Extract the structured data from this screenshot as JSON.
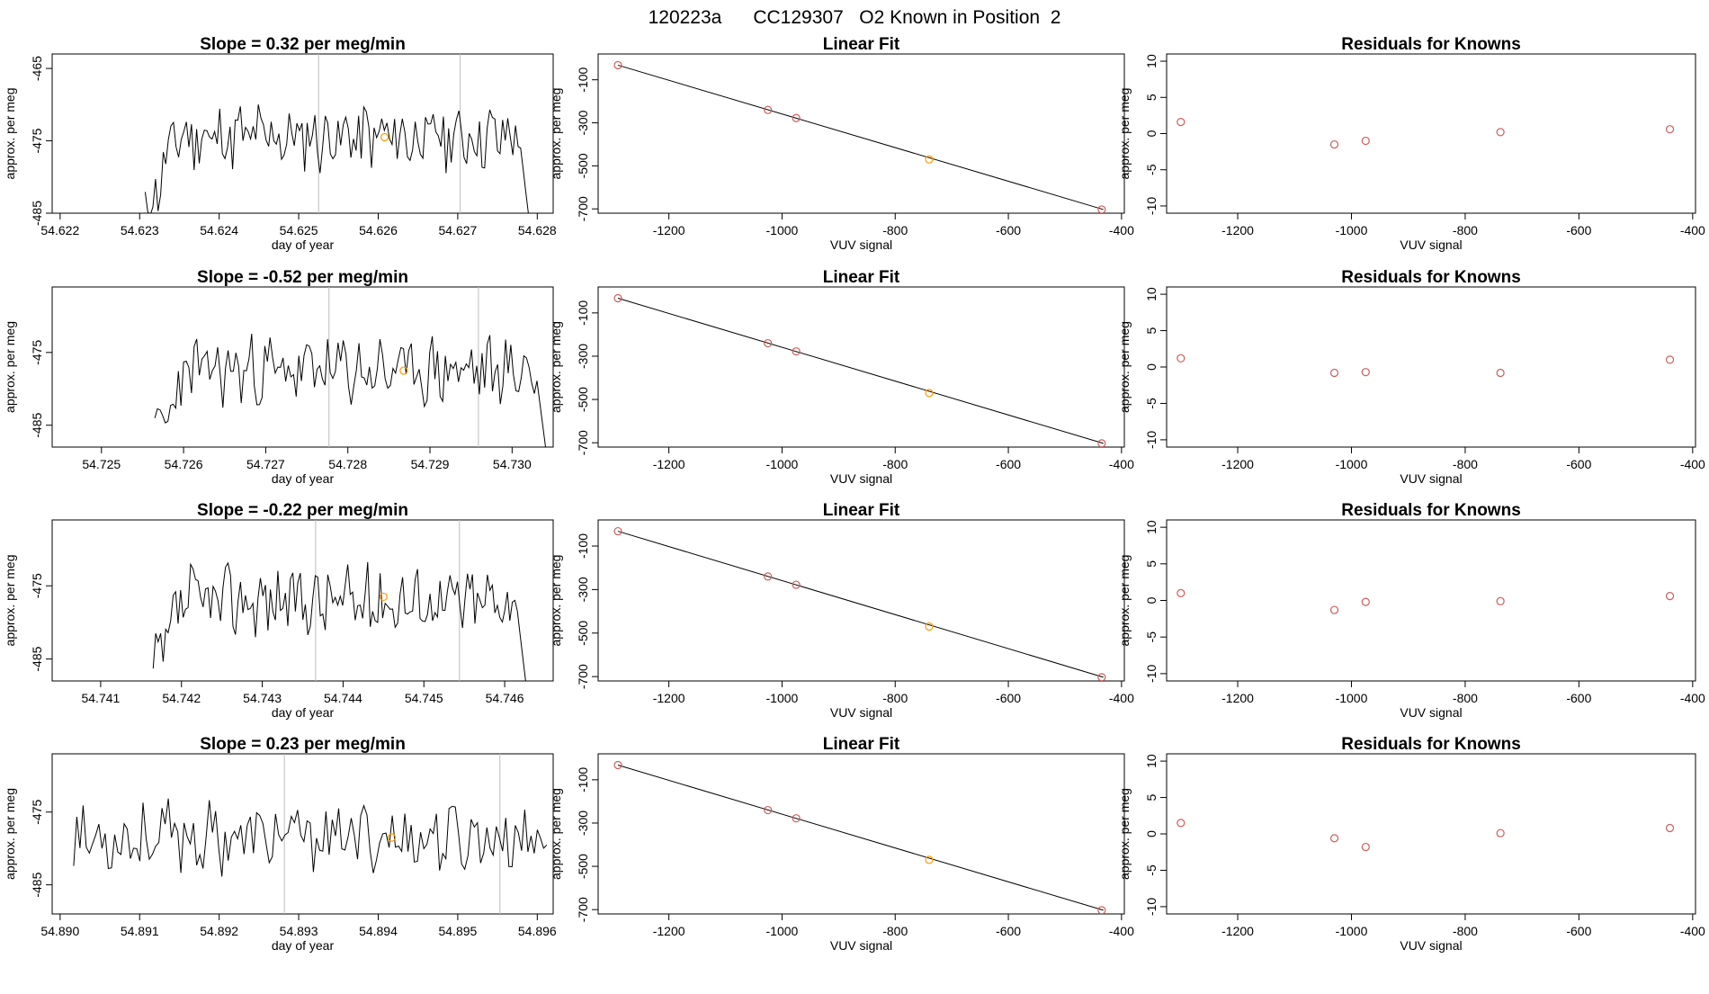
{
  "page_title": "120223a      CC129307   O2 Known in Position  2",
  "colors": {
    "line": "#000000",
    "known_point": "#cd5c5c",
    "unknown_point": "#ff9900",
    "vline": "#bebebe"
  },
  "chart_data": [
    {
      "type": "line",
      "title": "Slope =  0.32  per meg/min",
      "xlabel": "day of year",
      "ylabel": "approx. per meg",
      "xlim": [
        54.6219,
        54.6282
      ],
      "ylim": [
        -485,
        -463
      ],
      "xticks": [
        "54.622",
        "54.623",
        "54.624",
        "54.625",
        "54.626",
        "54.627",
        "54.628"
      ],
      "yticks": [
        "-465",
        "-475",
        "-485"
      ],
      "vlines": [
        54.62525,
        54.62703
      ],
      "marker": {
        "x": 54.62608,
        "y": -474.5
      },
      "trace": {
        "x0": 54.62307,
        "x1": 54.62792,
        "y_base": -474.5,
        "y_end": -488,
        "seed": 11
      }
    },
    {
      "type": "line",
      "title": "Linear Fit",
      "xlabel": "VUV signal",
      "ylabel": "approx. per meg",
      "xlim": [
        -1325,
        -395
      ],
      "ylim": [
        -720,
        20
      ],
      "xticks": [
        "-1200",
        "-1000",
        "-800",
        "-600",
        "-400"
      ],
      "yticks": [
        "-100",
        "-300",
        "-500",
        "-700"
      ],
      "fit": {
        "x": [
          -1290,
          -432
        ],
        "y": [
          -32,
          -703
        ]
      },
      "points": [
        {
          "x": -1290,
          "y": -32,
          "kind": "known"
        },
        {
          "x": -1025,
          "y": -240,
          "kind": "known"
        },
        {
          "x": -975,
          "y": -278,
          "kind": "known"
        },
        {
          "x": -740,
          "y": -470,
          "kind": "unknown"
        },
        {
          "x": -435,
          "y": -703,
          "kind": "known"
        }
      ]
    },
    {
      "type": "scatter",
      "title": "Residuals for Knowns",
      "xlabel": "VUV signal",
      "ylabel": "approx. per meg",
      "xlim": [
        -1325,
        -395
      ],
      "ylim": [
        -11,
        11
      ],
      "xticks": [
        "-1200",
        "-1000",
        "-800",
        "-600",
        "-400"
      ],
      "yticks": [
        "10",
        "5",
        "0",
        "-5",
        "-10"
      ],
      "points": [
        {
          "x": -1300,
          "y": 1.6
        },
        {
          "x": -1030,
          "y": -1.5
        },
        {
          "x": -975,
          "y": -1.0
        },
        {
          "x": -738,
          "y": 0.2
        },
        {
          "x": -440,
          "y": 0.6
        }
      ]
    },
    {
      "type": "line",
      "title": "Slope =  -0.52  per meg/min",
      "xlabel": "day of year",
      "ylabel": "approx. per meg",
      "xlim": [
        54.7244,
        54.7305
      ],
      "ylim": [
        -488,
        -466
      ],
      "xticks": [
        "54.725",
        "54.726",
        "54.727",
        "54.728",
        "54.729",
        "54.730"
      ],
      "yticks": [
        "-475",
        "-485"
      ],
      "vlines": [
        54.72777,
        54.72959
      ],
      "marker": {
        "x": 54.72868,
        "y": -477.5
      },
      "trace": {
        "x0": 54.72565,
        "x1": 54.73043,
        "y_base": -477.5,
        "y_end": -490,
        "seed": 23
      }
    },
    {
      "type": "line",
      "title": "Linear Fit",
      "xlabel": "VUV signal",
      "ylabel": "approx. per meg",
      "xlim": [
        -1325,
        -395
      ],
      "ylim": [
        -720,
        20
      ],
      "xticks": [
        "-1200",
        "-1000",
        "-800",
        "-600",
        "-400"
      ],
      "yticks": [
        "-100",
        "-300",
        "-500",
        "-700"
      ],
      "fit": {
        "x": [
          -1290,
          -432
        ],
        "y": [
          -32,
          -703
        ]
      },
      "points": [
        {
          "x": -1290,
          "y": -32,
          "kind": "known"
        },
        {
          "x": -1025,
          "y": -240,
          "kind": "known"
        },
        {
          "x": -975,
          "y": -278,
          "kind": "known"
        },
        {
          "x": -740,
          "y": -470,
          "kind": "unknown"
        },
        {
          "x": -435,
          "y": -703,
          "kind": "known"
        }
      ]
    },
    {
      "type": "scatter",
      "title": "Residuals for Knowns",
      "xlabel": "VUV signal",
      "ylabel": "approx. per meg",
      "xlim": [
        -1325,
        -395
      ],
      "ylim": [
        -11,
        11
      ],
      "xticks": [
        "-1200",
        "-1000",
        "-800",
        "-600",
        "-400"
      ],
      "yticks": [
        "10",
        "5",
        "0",
        "-5",
        "-10"
      ],
      "points": [
        {
          "x": -1300,
          "y": 1.2
        },
        {
          "x": -1030,
          "y": -0.8
        },
        {
          "x": -975,
          "y": -0.7
        },
        {
          "x": -738,
          "y": -0.8
        },
        {
          "x": -440,
          "y": 1.0
        }
      ]
    },
    {
      "type": "line",
      "title": "Slope =  -0.22  per meg/min",
      "xlabel": "day of year",
      "ylabel": "approx. per meg",
      "xlim": [
        54.7404,
        54.7466
      ],
      "ylim": [
        -488,
        -466
      ],
      "xticks": [
        "54.741",
        "54.742",
        "54.743",
        "54.744",
        "54.745",
        "54.746"
      ],
      "yticks": [
        "-475",
        "-485"
      ],
      "vlines": [
        54.74366,
        54.74544
      ],
      "marker": {
        "x": 54.7445,
        "y": -476.5
      },
      "trace": {
        "x0": 54.74165,
        "x1": 54.74628,
        "y_base": -477.0,
        "y_end": -490,
        "seed": 37
      }
    },
    {
      "type": "line",
      "title": "Linear Fit",
      "xlabel": "VUV signal",
      "ylabel": "approx. per meg",
      "xlim": [
        -1325,
        -395
      ],
      "ylim": [
        -720,
        20
      ],
      "xticks": [
        "-1200",
        "-1000",
        "-800",
        "-600",
        "-400"
      ],
      "yticks": [
        "-100",
        "-300",
        "-500",
        "-700"
      ],
      "fit": {
        "x": [
          -1290,
          -432
        ],
        "y": [
          -32,
          -703
        ]
      },
      "points": [
        {
          "x": -1290,
          "y": -32,
          "kind": "known"
        },
        {
          "x": -1025,
          "y": -240,
          "kind": "known"
        },
        {
          "x": -975,
          "y": -278,
          "kind": "known"
        },
        {
          "x": -740,
          "y": -470,
          "kind": "unknown"
        },
        {
          "x": -435,
          "y": -703,
          "kind": "known"
        }
      ]
    },
    {
      "type": "scatter",
      "title": "Residuals for Knowns",
      "xlabel": "VUV signal",
      "ylabel": "approx. per meg",
      "xlim": [
        -1325,
        -395
      ],
      "ylim": [
        -11,
        11
      ],
      "xticks": [
        "-1200",
        "-1000",
        "-800",
        "-600",
        "-400"
      ],
      "yticks": [
        "10",
        "5",
        "0",
        "-5",
        "-10"
      ],
      "points": [
        {
          "x": -1300,
          "y": 1.0
        },
        {
          "x": -1030,
          "y": -1.3
        },
        {
          "x": -975,
          "y": -0.2
        },
        {
          "x": -738,
          "y": -0.1
        },
        {
          "x": -440,
          "y": 0.6
        }
      ]
    },
    {
      "type": "line",
      "title": "Slope =  0.23  per meg/min",
      "xlabel": "day of year",
      "ylabel": "approx. per meg",
      "xlim": [
        54.8899,
        54.8962
      ],
      "ylim": [
        -489,
        -467
      ],
      "xticks": [
        "54.890",
        "54.891",
        "54.892",
        "54.893",
        "54.894",
        "54.895",
        "54.896"
      ],
      "yticks": [
        "-475",
        "-485"
      ],
      "vlines": [
        54.89282,
        54.89553
      ],
      "marker": {
        "x": 54.89417,
        "y": -478.5
      },
      "trace": {
        "x0": 54.89017,
        "x1": 54.89612,
        "y_base": -478.5,
        "y_end": null,
        "seed": 53
      }
    },
    {
      "type": "line",
      "title": "Linear Fit",
      "xlabel": "VUV signal",
      "ylabel": "approx. per meg",
      "xlim": [
        -1325,
        -395
      ],
      "ylim": [
        -720,
        20
      ],
      "xticks": [
        "-1200",
        "-1000",
        "-800",
        "-600",
        "-400"
      ],
      "yticks": [
        "-100",
        "-300",
        "-500",
        "-700"
      ],
      "fit": {
        "x": [
          -1290,
          -432
        ],
        "y": [
          -32,
          -703
        ]
      },
      "points": [
        {
          "x": -1290,
          "y": -32,
          "kind": "known"
        },
        {
          "x": -1025,
          "y": -240,
          "kind": "known"
        },
        {
          "x": -975,
          "y": -278,
          "kind": "known"
        },
        {
          "x": -740,
          "y": -470,
          "kind": "unknown"
        },
        {
          "x": -435,
          "y": -703,
          "kind": "known"
        }
      ]
    },
    {
      "type": "scatter",
      "title": "Residuals for Knowns",
      "xlabel": "VUV signal",
      "ylabel": "approx. per meg",
      "xlim": [
        -1325,
        -395
      ],
      "ylim": [
        -11,
        11
      ],
      "xticks": [
        "-1200",
        "-1000",
        "-800",
        "-600",
        "-400"
      ],
      "yticks": [
        "10",
        "5",
        "0",
        "-5",
        "-10"
      ],
      "points": [
        {
          "x": -1300,
          "y": 1.5
        },
        {
          "x": -1030,
          "y": -0.6
        },
        {
          "x": -975,
          "y": -1.8
        },
        {
          "x": -738,
          "y": 0.1
        },
        {
          "x": -440,
          "y": 0.8
        }
      ]
    }
  ]
}
